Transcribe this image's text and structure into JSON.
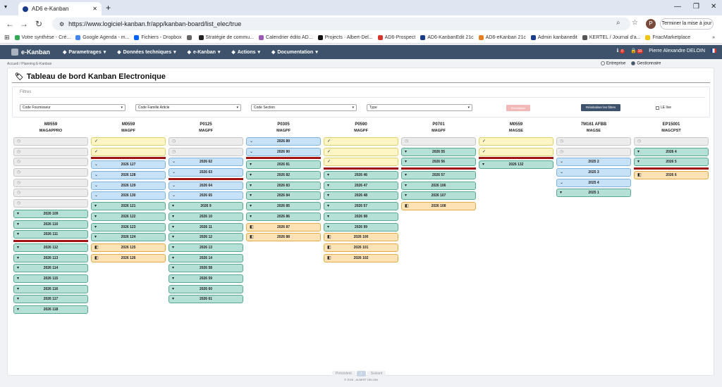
{
  "browser": {
    "tab_title": "AD6 e-Kanban",
    "url": "https://www.logiciel-kanban.fr/app/kanban-board/list_elec/true",
    "update_label": "Terminer la mise à jour",
    "profile_initial": "P",
    "bookmarks": [
      {
        "label": "Votre synthèse - Cré...",
        "color": "#34a853"
      },
      {
        "label": "Google Agenda - m...",
        "color": "#4285f4"
      },
      {
        "label": "Fichiers - Dropbox",
        "color": "#0061fe"
      },
      {
        "label": "",
        "color": "#666666"
      },
      {
        "label": "Stratégie de commu...",
        "color": "#222222"
      },
      {
        "label": "Calendrier édito AD...",
        "color": "#9b59b6"
      },
      {
        "label": "Projects · Albert-Del...",
        "color": "#111111"
      },
      {
        "label": "AD6-Prospect",
        "color": "#d9342b"
      },
      {
        "label": "AD6-KanbanEdit 21c",
        "color": "#1a3a8a"
      },
      {
        "label": "AD6-eKanban 21c",
        "color": "#e67e22"
      },
      {
        "label": "Admin kanbanedit",
        "color": "#1a3a8a"
      },
      {
        "label": "KERTEL / Journal d'a...",
        "color": "#555555"
      },
      {
        "label": "FnacMarketplace",
        "color": "#f1c40f"
      }
    ]
  },
  "app": {
    "brand": "e-Kanban",
    "menu": [
      "Parametrages",
      "Données techniques",
      "e-Kanban",
      "Actions",
      "Documentation"
    ],
    "badge1": "0",
    "badge2": "10",
    "user": "Pierre Alexandre DELOIN",
    "breadcrumb": "Accueil  /  Planning E-Kanban",
    "radio_entreprise": "Entreprise",
    "radio_gestionnaire": "Gestionnaire",
    "title": "Tableau de bord Kanban Electronique",
    "filters": {
      "legend": "Filtres",
      "fournisseur": "Code Fournisseur",
      "famille": "Code Famille Article",
      "section": "Code Section",
      "type": "Type",
      "muted_button": "Réinitialiser",
      "reset_button": "Réinitialiser les filtres",
      "live_label": "LE live"
    },
    "pager": {
      "prev": "Précédent",
      "page": "1",
      "next": "Suivant"
    },
    "footer": "© 2026 - ALBERT DELOIN"
  },
  "columns": [
    {
      "code": "M0559",
      "mag": "MAGAPPRO",
      "cards": [
        {
          "t": "grey"
        },
        {
          "t": "grey"
        },
        {
          "t": "grey"
        },
        {
          "t": "grey"
        },
        {
          "t": "grey"
        },
        {
          "t": "grey"
        },
        {
          "t": "grey"
        },
        {
          "t": "teal",
          "label": "2026 109"
        },
        {
          "t": "teal",
          "label": "2026 110"
        },
        {
          "t": "teal",
          "label": "2026 111"
        },
        {
          "t": "sep"
        },
        {
          "t": "teal",
          "label": "2026 112"
        },
        {
          "t": "teal",
          "label": "2026 113"
        },
        {
          "t": "teal",
          "label": "2026 114"
        },
        {
          "t": "teal",
          "label": "2026 115"
        },
        {
          "t": "teal",
          "label": "2026 116"
        },
        {
          "t": "teal",
          "label": "2026 117"
        },
        {
          "t": "teal",
          "label": "2026 118"
        }
      ]
    },
    {
      "code": "M0559",
      "mag": "MAGPF",
      "cards": [
        {
          "t": "yellow"
        },
        {
          "t": "yellow"
        },
        {
          "t": "sep"
        },
        {
          "t": "blue",
          "label": "2026 127"
        },
        {
          "t": "blue",
          "label": "2026 128"
        },
        {
          "t": "blue",
          "label": "2026 129"
        },
        {
          "t": "blue",
          "label": "2026 130"
        },
        {
          "t": "teal",
          "label": "2026 121"
        },
        {
          "t": "teal",
          "label": "2026 122"
        },
        {
          "t": "teal",
          "label": "2026 123"
        },
        {
          "t": "teal",
          "label": "2026 124"
        },
        {
          "t": "orange",
          "label": "2026 125"
        },
        {
          "t": "orange",
          "label": "2026 126"
        }
      ]
    },
    {
      "code": "P0125",
      "mag": "MAGPF",
      "cards": [
        {
          "t": "grey"
        },
        {
          "t": "grey"
        },
        {
          "t": "blue",
          "label": "2026 62"
        },
        {
          "t": "blue",
          "label": "2026 63"
        },
        {
          "t": "sep"
        },
        {
          "t": "blue",
          "label": "2026 64"
        },
        {
          "t": "blue",
          "label": "2026 65"
        },
        {
          "t": "teal",
          "label": "2026 9"
        },
        {
          "t": "teal",
          "label": "2026 10"
        },
        {
          "t": "teal",
          "label": "2026 11"
        },
        {
          "t": "teal",
          "label": "2026 12"
        },
        {
          "t": "teal",
          "label": "2026 13"
        },
        {
          "t": "teal",
          "label": "2026 14"
        },
        {
          "t": "teal",
          "label": "2026 58"
        },
        {
          "t": "teal",
          "label": "2026 59"
        },
        {
          "t": "teal",
          "label": "2026 60"
        },
        {
          "t": "teal",
          "label": "2026 61"
        }
      ]
    },
    {
      "code": "P0305",
      "mag": "MAGPF",
      "cards": [
        {
          "t": "blue",
          "label": "2026 89"
        },
        {
          "t": "blue",
          "label": "2026 90"
        },
        {
          "t": "sep"
        },
        {
          "t": "teal",
          "label": "2026 81"
        },
        {
          "t": "teal",
          "label": "2026 82"
        },
        {
          "t": "teal",
          "label": "2026 83"
        },
        {
          "t": "teal",
          "label": "2026 84"
        },
        {
          "t": "teal",
          "label": "2026 85"
        },
        {
          "t": "teal",
          "label": "2026 86"
        },
        {
          "t": "orange",
          "label": "2026 87"
        },
        {
          "t": "orange",
          "label": "2026 88"
        }
      ]
    },
    {
      "code": "P0590",
      "mag": "MAGPF",
      "cards": [
        {
          "t": "yellow"
        },
        {
          "t": "yellow"
        },
        {
          "t": "yellow"
        },
        {
          "t": "sep"
        },
        {
          "t": "teal",
          "label": "2026 46"
        },
        {
          "t": "teal",
          "label": "2026 47"
        },
        {
          "t": "teal",
          "label": "2026 48"
        },
        {
          "t": "teal",
          "label": "2026 57"
        },
        {
          "t": "teal",
          "label": "2026 98"
        },
        {
          "t": "teal",
          "label": "2026 99"
        },
        {
          "t": "orange",
          "label": "2026 100"
        },
        {
          "t": "orange",
          "label": "2026 101"
        },
        {
          "t": "orange",
          "label": "2026 102"
        }
      ]
    },
    {
      "code": "P0701",
      "mag": "MAGPF",
      "cards": [
        {
          "t": "grey"
        },
        {
          "t": "teal",
          "label": "2026 55"
        },
        {
          "t": "teal",
          "label": "2026 56"
        },
        {
          "t": "sep"
        },
        {
          "t": "teal",
          "label": "2026 57"
        },
        {
          "t": "teal",
          "label": "2026 106"
        },
        {
          "t": "teal",
          "label": "2026 107"
        },
        {
          "t": "orange",
          "label": "2026 108"
        }
      ]
    },
    {
      "code": "M0559",
      "mag": "MAGSE",
      "cards": [
        {
          "t": "yellow"
        },
        {
          "t": "yellow"
        },
        {
          "t": "sep"
        },
        {
          "t": "teal",
          "label": "2026 132"
        }
      ]
    },
    {
      "code": "7M161 AFBB",
      "mag": "MAGSE",
      "cards": [
        {
          "t": "grey"
        },
        {
          "t": "grey"
        },
        {
          "t": "blue",
          "label": "2025 2"
        },
        {
          "t": "blue",
          "label": "2025 3"
        },
        {
          "t": "blue",
          "label": "2025 4"
        },
        {
          "t": "teal",
          "label": "2025 1"
        }
      ]
    },
    {
      "code": "EP15001",
      "mag": "MAGCPST",
      "cards": [
        {
          "t": "grey"
        },
        {
          "t": "teal",
          "label": "2026 4"
        },
        {
          "t": "teal",
          "label": "2026 5"
        },
        {
          "t": "sep"
        },
        {
          "t": "orange",
          "label": "2026 6"
        }
      ]
    }
  ]
}
